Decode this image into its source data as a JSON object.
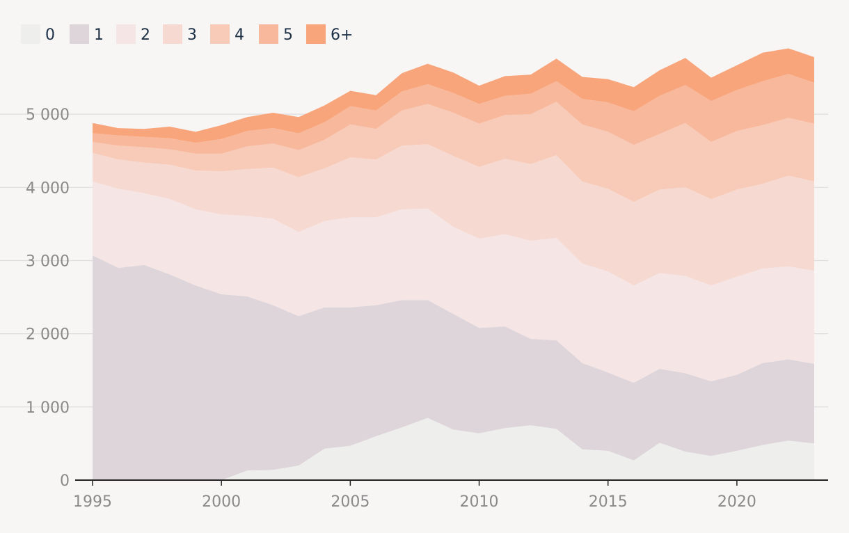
{
  "chart_data": {
    "type": "area",
    "stacked": true,
    "title": "",
    "xlabel": "",
    "ylabel": "",
    "xlim": [
      1995,
      2023
    ],
    "ylim": [
      0,
      5800
    ],
    "x_ticks": [
      1995,
      2000,
      2005,
      2010,
      2015,
      2020
    ],
    "y_ticks": [
      0,
      1000,
      2000,
      3000,
      4000,
      5000
    ],
    "x_tick_labels": [
      "1995",
      "2000",
      "2005",
      "2010",
      "2015",
      "2020"
    ],
    "y_tick_labels": [
      "0",
      "1 000",
      "2 000",
      "3 000",
      "4 000",
      "5 000"
    ],
    "grid": true,
    "legend_position": "top-left",
    "x": [
      1995,
      1996,
      1997,
      1998,
      1999,
      2000,
      2001,
      2002,
      2003,
      2004,
      2005,
      2006,
      2007,
      2008,
      2009,
      2010,
      2011,
      2012,
      2013,
      2014,
      2015,
      2016,
      2017,
      2018,
      2019,
      2020,
      2021,
      2022,
      2023
    ],
    "series": [
      {
        "name": "0",
        "color": "#eeeeed",
        "values": [
          0,
          0,
          0,
          0,
          0,
          0,
          130,
          140,
          200,
          430,
          470,
          600,
          720,
          850,
          690,
          640,
          710,
          750,
          700,
          420,
          400,
          270,
          510,
          390,
          330,
          400,
          480,
          540,
          500
        ]
      },
      {
        "name": "1",
        "color": "#ddd5d9",
        "values": [
          3070,
          2900,
          2940,
          2810,
          2660,
          2540,
          2380,
          2250,
          2040,
          1930,
          1890,
          1790,
          1740,
          1610,
          1580,
          1440,
          1390,
          1180,
          1210,
          1180,
          1070,
          1060,
          1010,
          1070,
          1020,
          1040,
          1120,
          1110,
          1090
        ]
      },
      {
        "name": "2",
        "color": "#f5e5e5",
        "values": [
          1010,
          1080,
          980,
          1030,
          1040,
          1090,
          1100,
          1180,
          1150,
          1180,
          1230,
          1200,
          1240,
          1250,
          1190,
          1220,
          1260,
          1340,
          1400,
          1360,
          1380,
          1330,
          1310,
          1330,
          1310,
          1340,
          1290,
          1270,
          1270
        ]
      },
      {
        "name": "3",
        "color": "#f6dad2",
        "values": [
          390,
          400,
          420,
          470,
          530,
          590,
          640,
          700,
          750,
          720,
          820,
          790,
          870,
          880,
          970,
          980,
          1030,
          1050,
          1130,
          1120,
          1130,
          1140,
          1140,
          1210,
          1180,
          1190,
          1160,
          1240,
          1220
        ]
      },
      {
        "name": "4",
        "color": "#f8cab8",
        "values": [
          150,
          190,
          210,
          210,
          230,
          240,
          310,
          330,
          370,
          390,
          450,
          420,
          480,
          550,
          590,
          590,
          600,
          680,
          730,
          780,
          780,
          780,
          760,
          880,
          780,
          800,
          800,
          790,
          790
        ]
      },
      {
        "name": "5",
        "color": "#f8b89c",
        "values": [
          120,
          140,
          140,
          150,
          150,
          200,
          210,
          210,
          230,
          240,
          250,
          250,
          260,
          270,
          270,
          270,
          260,
          280,
          280,
          350,
          400,
          460,
          520,
          520,
          560,
          560,
          600,
          600,
          560
        ]
      },
      {
        "name": "6+",
        "color": "#f9a57b",
        "values": [
          140,
          100,
          110,
          160,
          150,
          190,
          190,
          210,
          220,
          230,
          210,
          210,
          250,
          280,
          280,
          250,
          270,
          260,
          310,
          300,
          320,
          330,
          350,
          370,
          320,
          340,
          390,
          350,
          350
        ]
      }
    ]
  }
}
